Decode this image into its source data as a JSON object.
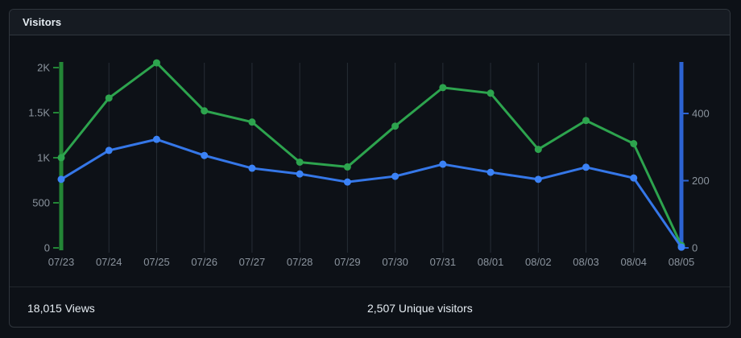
{
  "card": {
    "title": "Visitors"
  },
  "footer": {
    "views": "18,015 Views",
    "unique": "2,507 Unique visitors"
  },
  "chart_data": {
    "type": "line",
    "title": "Visitors",
    "x": [
      "07/23",
      "07/24",
      "07/25",
      "07/26",
      "07/27",
      "07/28",
      "07/29",
      "07/30",
      "07/31",
      "08/01",
      "08/02",
      "08/03",
      "08/04",
      "08/05"
    ],
    "series": [
      {
        "name": "Views",
        "axis": "left",
        "line_color": "#2da44e",
        "point_color": "#2da44e",
        "values": [
          1001,
          1662,
          2053,
          1520,
          1396,
          951,
          898,
          1351,
          1778,
          1716,
          1093,
          1413,
          1156,
          27
        ]
      },
      {
        "name": "Unique visitors",
        "axis": "right",
        "line_color": "#3577e8",
        "point_color": "#3b82f6",
        "values": [
          204,
          290,
          323,
          275,
          237,
          220,
          196,
          213,
          249,
          225,
          204,
          240,
          208,
          2
        ]
      }
    ],
    "left_axis": {
      "labels": [
        "0",
        "500",
        "1K",
        "1.5K",
        "2K"
      ],
      "tick_values": [
        0,
        500,
        1000,
        1500,
        2000
      ],
      "max": 2000,
      "color": "#238636"
    },
    "right_axis": {
      "labels": [
        "0",
        "200",
        "400"
      ],
      "tick_values": [
        0,
        200,
        400
      ],
      "max": 400,
      "color": "#2c63d2"
    },
    "grid": "vertical-only",
    "grid_color": "#262d36",
    "tick_label_color": "#8b949e",
    "legend": "none",
    "totals": {
      "views": "18,015",
      "unique_visitors": "2,507"
    }
  }
}
